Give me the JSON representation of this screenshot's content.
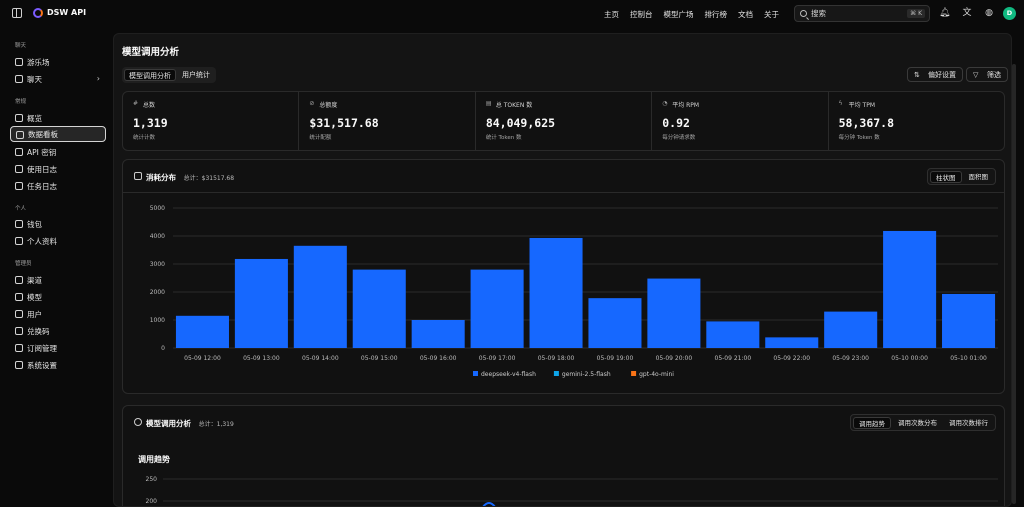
{
  "app": {
    "brand": "DSW API"
  },
  "nav": [
    "主页",
    "控制台",
    "模型广场",
    "排行榜",
    "文档",
    "关于"
  ],
  "search": {
    "placeholder": "搜索",
    "shortcut": "⌘ K"
  },
  "user": {
    "initial": "D"
  },
  "sidebar": {
    "sections": [
      {
        "title": "聊天",
        "items": [
          "游乐场",
          "聊天"
        ]
      },
      {
        "title": "常规",
        "items": [
          "概览",
          "数据看板",
          "API 密钥",
          "使用日志",
          "任务日志"
        ]
      },
      {
        "title": "个人",
        "items": [
          "钱包",
          "个人资料"
        ]
      },
      {
        "title": "管理员",
        "items": [
          "渠道",
          "模型",
          "用户",
          "兑换码",
          "订阅管理",
          "系统设置"
        ]
      }
    ],
    "active": "数据看板"
  },
  "page": {
    "title": "模型调用分析",
    "tabs": [
      "模型调用分析",
      "用户统计"
    ],
    "buttons": {
      "preferences": "偏好设置",
      "filter": "筛选"
    }
  },
  "stats": [
    {
      "label": "总数",
      "icon": "hash-icon",
      "value": "1,319",
      "sub": "统计计数"
    },
    {
      "label": "总额度",
      "icon": "coins-icon",
      "value": "$31,517.68",
      "sub": "统计配额"
    },
    {
      "label": "总 TOKEN 数",
      "icon": "database-icon",
      "value": "84,049,625",
      "sub": "统计 Token 数"
    },
    {
      "label": "平均 RPM",
      "icon": "gauge-icon",
      "value": "0.92",
      "sub": "每分钟请求数"
    },
    {
      "label": "平均 TPM",
      "icon": "zap-icon",
      "value": "58,367.8",
      "sub": "每分钟 Token 数"
    }
  ],
  "consumption": {
    "title": "消耗分布",
    "total": "总计：$31517.68",
    "modes": [
      "柱状图",
      "面积图"
    ]
  },
  "calls": {
    "title": "模型调用分析",
    "total": "总计：1,319",
    "modes": [
      "调用趋势",
      "调用次数分布",
      "调用次数排行"
    ],
    "subtitle": "调用趋势"
  },
  "chart_data": [
    {
      "type": "bar",
      "categories": [
        "05-09 12:00",
        "05-09 13:00",
        "05-09 14:00",
        "05-09 15:00",
        "05-09 16:00",
        "05-09 17:00",
        "05-09 18:00",
        "05-09 19:00",
        "05-09 20:00",
        "05-09 21:00",
        "05-09 22:00",
        "05-09 23:00",
        "05-10 00:00",
        "05-10 01:00"
      ],
      "series": [
        {
          "name": "deepseek-v4-flash",
          "color": "#1668ff",
          "values": [
            1150,
            3180,
            3650,
            2800,
            1000,
            2800,
            3930,
            1780,
            2480,
            950,
            380,
            1300,
            4180,
            1930
          ]
        },
        {
          "name": "gemini-2.5-flash",
          "color": "#0ea5e9",
          "values": [
            0,
            0,
            0,
            0,
            0,
            0,
            0,
            0,
            0,
            0,
            0,
            0,
            0,
            0
          ]
        },
        {
          "name": "gpt-4o-mini",
          "color": "#f97316",
          "values": [
            0,
            0,
            0,
            0,
            0,
            0,
            0,
            0,
            0,
            0,
            0,
            0,
            0,
            0
          ]
        }
      ],
      "yticks": [
        0,
        1000,
        2000,
        3000,
        4000,
        5000
      ],
      "ylim": [
        0,
        5000
      ],
      "legend": "bottom-center",
      "grid": true
    },
    {
      "type": "line",
      "yticks_visible": [
        200,
        250
      ],
      "ylim": [
        0,
        250
      ],
      "grid": true
    }
  ]
}
